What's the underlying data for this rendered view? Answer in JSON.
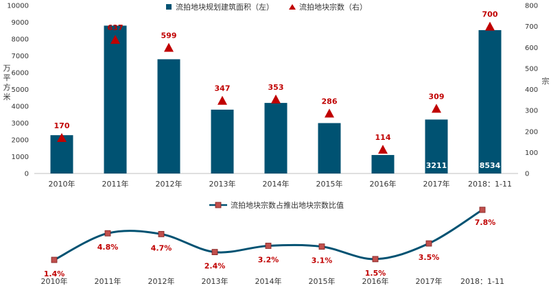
{
  "chart_data": [
    {
      "type": "bar",
      "title": "",
      "categories": [
        "2010年",
        "2011年",
        "2012年",
        "2013年",
        "2014年",
        "2015年",
        "2016年",
        "2017年",
        "2018：1-11"
      ],
      "series": [
        {
          "name": "流拍地块规划建筑面积（左）",
          "axis": "left",
          "values": [
            2280,
            8800,
            6800,
            3800,
            4200,
            3000,
            1100,
            3211,
            8534
          ],
          "value_labels": [
            "",
            "",
            "",
            "",
            "",
            "",
            "",
            "3211",
            "8534"
          ]
        },
        {
          "name": "流拍地块宗数（右）",
          "axis": "right",
          "marker": "triangle",
          "values": [
            170,
            637,
            599,
            347,
            353,
            286,
            114,
            309,
            700
          ],
          "value_labels": [
            "170",
            "637",
            "599",
            "347",
            "353",
            "286",
            "114",
            "309",
            "700"
          ]
        }
      ],
      "y_left": {
        "label_chars": [
          "万",
          "平",
          "方",
          "米"
        ],
        "ylim": [
          0,
          10000
        ],
        "ticks": [
          "0",
          "1000",
          "2000",
          "3000",
          "4000",
          "5000",
          "6000",
          "7000",
          "8000",
          "9000",
          "10000"
        ]
      },
      "y_right": {
        "label": "宗",
        "ylim": [
          0,
          800
        ],
        "ticks": [
          "0",
          "100",
          "200",
          "300",
          "400",
          "500",
          "600",
          "700",
          "800"
        ]
      },
      "colors": {
        "bar": "#005272",
        "marker": "#c00000",
        "label": "#c00000"
      },
      "grid": false,
      "legend": "top-center"
    },
    {
      "type": "line",
      "title": "",
      "categories": [
        "2010年",
        "2011年",
        "2012年",
        "2013年",
        "2014年",
        "2015年",
        "2016年",
        "2017年",
        "2018：1-11"
      ],
      "series": [
        {
          "name": "流拍地块宗数占推出地块宗数比值",
          "values": [
            1.4,
            4.8,
            4.7,
            2.4,
            3.2,
            3.1,
            1.5,
            3.5,
            7.8
          ],
          "value_labels": [
            "1.4%",
            "4.8%",
            "4.7%",
            "2.4%",
            "3.2%",
            "3.1%",
            "1.5%",
            "3.5%",
            "7.8%"
          ]
        }
      ],
      "ylim": [
        1.4,
        7.8
      ],
      "colors": {
        "line": "#005272",
        "marker": "#c0504d",
        "label": "#c00000"
      },
      "grid": false,
      "legend": "top-center"
    }
  ]
}
